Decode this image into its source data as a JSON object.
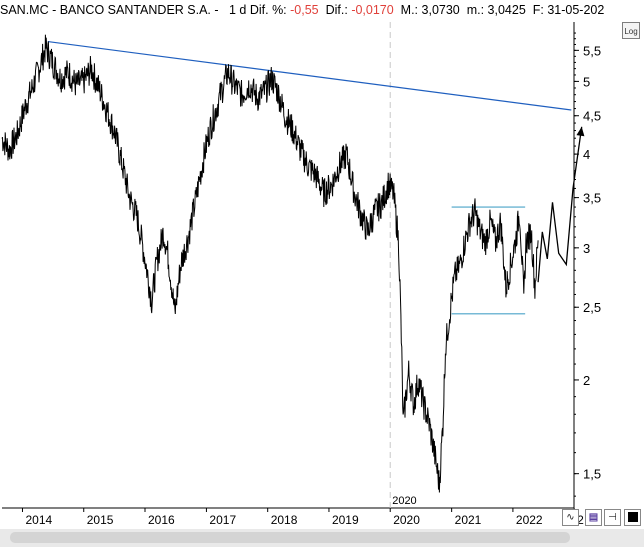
{
  "header": {
    "symbol": "SAN.MC - BANCO SANTANDER S.A. -",
    "period": "1 d",
    "pct_label": "Dif. %:",
    "pct_value": "-0,55",
    "dif_label": "Dif.:",
    "dif_value": "-0,0170",
    "max_label": "M.:",
    "max_value": "3,0730",
    "min_label": "m.:",
    "min_value": "3,0425",
    "date_label": "F:",
    "date_value": "31-05-202"
  },
  "toolbar": {
    "log_label": "Log",
    "wave_icon": "wave-icon",
    "save_icon": "save-icon",
    "pin_icon": "pin-icon",
    "color_icon": "black-square-icon"
  },
  "colors": {
    "price": "#000000",
    "trendline": "#1f5fbf",
    "range_lines": "#4aa3c8",
    "grid": "#c8c8c8"
  },
  "chart_data": {
    "type": "line",
    "y_scale": "log",
    "ylim": [
      1.35,
      6.0
    ],
    "xlim": [
      "2013-09-01",
      "2022-12-31"
    ],
    "y_ticks": [
      "5,5",
      "5",
      "4,5",
      "4",
      "3,5",
      "3",
      "2,5",
      "2",
      "1,5"
    ],
    "y_tick_values": [
      5.5,
      5,
      4.5,
      4,
      3.5,
      3,
      2.5,
      2,
      1.5
    ],
    "x_ticks": [
      "2014",
      "2015",
      "2016",
      "2017",
      "2018",
      "2019",
      "2020",
      "2021",
      "2022",
      "2"
    ],
    "x_tick_dates": [
      "2014-01-01",
      "2015-01-01",
      "2016-01-01",
      "2017-01-01",
      "2018-01-01",
      "2019-01-01",
      "2020-01-01",
      "2021-01-01",
      "2022-01-01",
      "2023-01-01"
    ],
    "vertical_marker": {
      "date": "2020-01-01",
      "label": "2020"
    },
    "series": [
      {
        "values": [
          [
            "2013-09-01",
            4.2
          ],
          [
            "2013-10-15",
            4.05
          ],
          [
            "2013-12-01",
            4.25
          ],
          [
            "2014-01-20",
            4.65
          ],
          [
            "2014-03-01",
            4.9
          ],
          [
            "2014-04-15",
            5.25
          ],
          [
            "2014-05-20",
            5.55
          ],
          [
            "2014-07-01",
            5.3
          ],
          [
            "2014-08-15",
            5.05
          ],
          [
            "2014-10-01",
            5.15
          ],
          [
            "2014-11-15",
            4.95
          ],
          [
            "2015-01-01",
            5.0
          ],
          [
            "2015-02-15",
            5.2
          ],
          [
            "2015-04-01",
            4.9
          ],
          [
            "2015-05-15",
            4.6
          ],
          [
            "2015-07-01",
            4.3
          ],
          [
            "2015-08-15",
            3.9
          ],
          [
            "2015-10-01",
            3.5
          ],
          [
            "2015-11-15",
            3.3
          ],
          [
            "2016-01-01",
            2.9
          ],
          [
            "2016-02-10",
            2.55
          ],
          [
            "2016-03-15",
            2.9
          ],
          [
            "2016-04-20",
            3.15
          ],
          [
            "2016-05-15",
            2.95
          ],
          [
            "2016-06-27",
            2.45
          ],
          [
            "2016-08-01",
            2.85
          ],
          [
            "2016-09-15",
            3.1
          ],
          [
            "2016-11-01",
            3.5
          ],
          [
            "2016-12-15",
            3.95
          ],
          [
            "2017-01-20",
            4.3
          ],
          [
            "2017-03-01",
            4.6
          ],
          [
            "2017-04-01",
            4.85
          ],
          [
            "2017-05-10",
            5.15
          ],
          [
            "2017-06-15",
            4.95
          ],
          [
            "2017-08-01",
            4.8
          ],
          [
            "2017-09-15",
            4.95
          ],
          [
            "2017-11-01",
            4.75
          ],
          [
            "2017-12-15",
            4.85
          ],
          [
            "2018-01-25",
            5.05
          ],
          [
            "2018-03-01",
            4.85
          ],
          [
            "2018-04-15",
            4.5
          ],
          [
            "2018-06-01",
            4.3
          ],
          [
            "2018-07-15",
            4.05
          ],
          [
            "2018-09-01",
            3.85
          ],
          [
            "2018-10-15",
            3.75
          ],
          [
            "2018-12-01",
            3.55
          ],
          [
            "2019-01-20",
            3.65
          ],
          [
            "2019-03-01",
            3.85
          ],
          [
            "2019-04-15",
            4.0
          ],
          [
            "2019-06-01",
            3.55
          ],
          [
            "2019-07-15",
            3.3
          ],
          [
            "2019-08-20",
            3.15
          ],
          [
            "2019-10-01",
            3.35
          ],
          [
            "2019-11-15",
            3.45
          ],
          [
            "2019-12-20",
            3.65
          ],
          [
            "2020-01-20",
            3.55
          ],
          [
            "2020-02-20",
            3.05
          ],
          [
            "2020-03-18",
            1.75
          ],
          [
            "2020-04-20",
            2.05
          ],
          [
            "2020-05-20",
            1.85
          ],
          [
            "2020-06-15",
            2.0
          ],
          [
            "2020-07-20",
            1.85
          ],
          [
            "2020-08-20",
            1.75
          ],
          [
            "2020-09-20",
            1.6
          ],
          [
            "2020-10-20",
            1.45
          ],
          [
            "2020-11-10",
            1.75
          ],
          [
            "2020-11-25",
            2.2
          ],
          [
            "2020-12-20",
            2.45
          ],
          [
            "2021-01-20",
            2.75
          ],
          [
            "2021-02-20",
            2.85
          ],
          [
            "2021-03-20",
            3.05
          ],
          [
            "2021-04-20",
            3.25
          ],
          [
            "2021-05-20",
            3.35
          ],
          [
            "2021-06-20",
            3.15
          ],
          [
            "2021-07-20",
            3.05
          ],
          [
            "2021-08-20",
            3.25
          ],
          [
            "2021-09-20",
            3.05
          ],
          [
            "2021-10-20",
            3.25
          ],
          [
            "2021-11-20",
            2.65
          ],
          [
            "2021-12-20",
            2.85
          ],
          [
            "2022-01-20",
            3.1
          ],
          [
            "2022-02-10",
            3.35
          ],
          [
            "2022-03-07",
            2.55
          ],
          [
            "2022-03-20",
            3.05
          ],
          [
            "2022-04-20",
            3.15
          ],
          [
            "2022-05-12",
            2.65
          ],
          [
            "2022-05-31",
            3.07
          ]
        ]
      }
    ],
    "trendline": [
      [
        "2014-06-01",
        5.65
      ],
      [
        "2022-12-15",
        4.58
      ]
    ],
    "range_lines": [
      {
        "y": 3.4,
        "x": [
          "2021-01-01",
          "2022-03-15"
        ]
      },
      {
        "y": 2.45,
        "x": [
          "2021-01-01",
          "2022-03-15"
        ]
      }
    ],
    "projection": [
      [
        "2022-05-31",
        2.7
      ],
      [
        "2022-06-25",
        3.15
      ],
      [
        "2022-07-25",
        2.9
      ],
      [
        "2022-08-25",
        3.45
      ],
      [
        "2022-10-01",
        2.95
      ],
      [
        "2022-11-15",
        2.85
      ],
      [
        "2022-12-25",
        3.6
      ],
      [
        "2023-02-15",
        4.35
      ]
    ]
  }
}
